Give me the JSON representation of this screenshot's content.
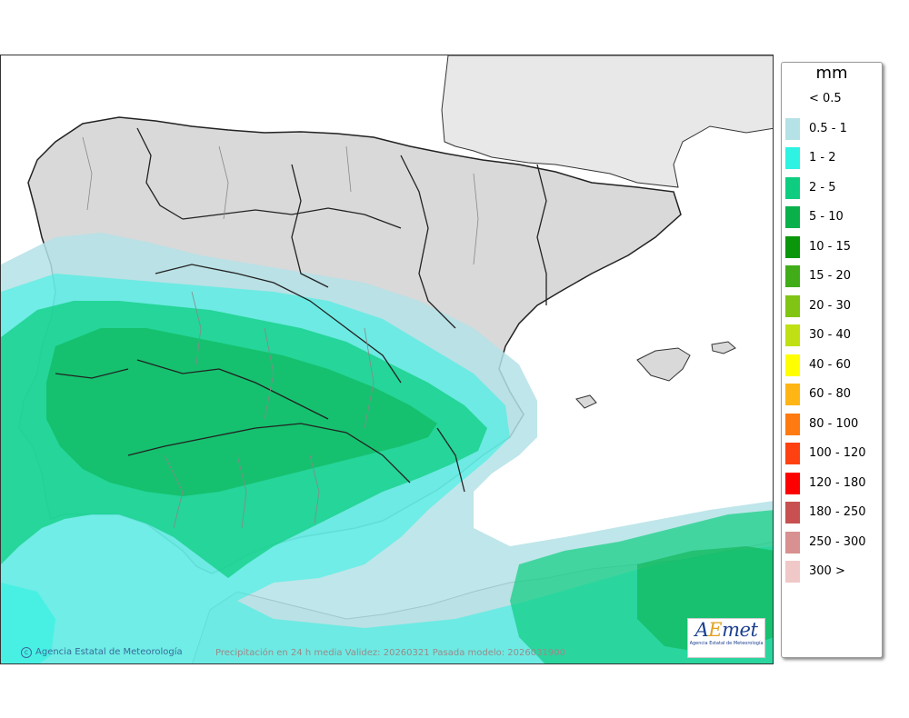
{
  "map": {
    "credit_left": "Agencia Estatal de Meteorología",
    "credit_center": "Precipitación en 24 h media  Validez: 20260321 Pasada modelo: 2026031900",
    "logo_text_a": "A",
    "logo_text_b": "E",
    "logo_text_c": "met",
    "logo_sub": "Agencia Estatal de Meteorología",
    "colors": {
      "sea": "#ffffff",
      "land_gray": "#d9d9d9",
      "france": "#e8e8e8",
      "border": "#222222",
      "province": "#888888"
    }
  },
  "legend": {
    "unit": "mm",
    "items": [
      {
        "label": "< 0.5",
        "color": "#ffffff"
      },
      {
        "label": "0.5 - 1",
        "color": "#b4e2e6"
      },
      {
        "label": "1 - 2",
        "color": "#2ef2e2"
      },
      {
        "label": "2 - 5",
        "color": "#0ecd80"
      },
      {
        "label": "5 - 10",
        "color": "#0ab04a"
      },
      {
        "label": "10 - 15",
        "color": "#0a960a"
      },
      {
        "label": "15 - 20",
        "color": "#40ac18"
      },
      {
        "label": "20 - 30",
        "color": "#80c414"
      },
      {
        "label": "30 - 40",
        "color": "#c0e014"
      },
      {
        "label": "40 - 60",
        "color": "#ffff00"
      },
      {
        "label": "60 - 80",
        "color": "#ffb514"
      },
      {
        "label": "80 - 100",
        "color": "#ff7a10"
      },
      {
        "label": "100 - 120",
        "color": "#ff4010"
      },
      {
        "label": "120 - 180",
        "color": "#ff0000"
      },
      {
        "label": "180 - 250",
        "color": "#c85050"
      },
      {
        "label": "250 - 300",
        "color": "#d89090"
      },
      {
        "label": "300 >",
        "color": "#f0c8c8"
      }
    ]
  }
}
